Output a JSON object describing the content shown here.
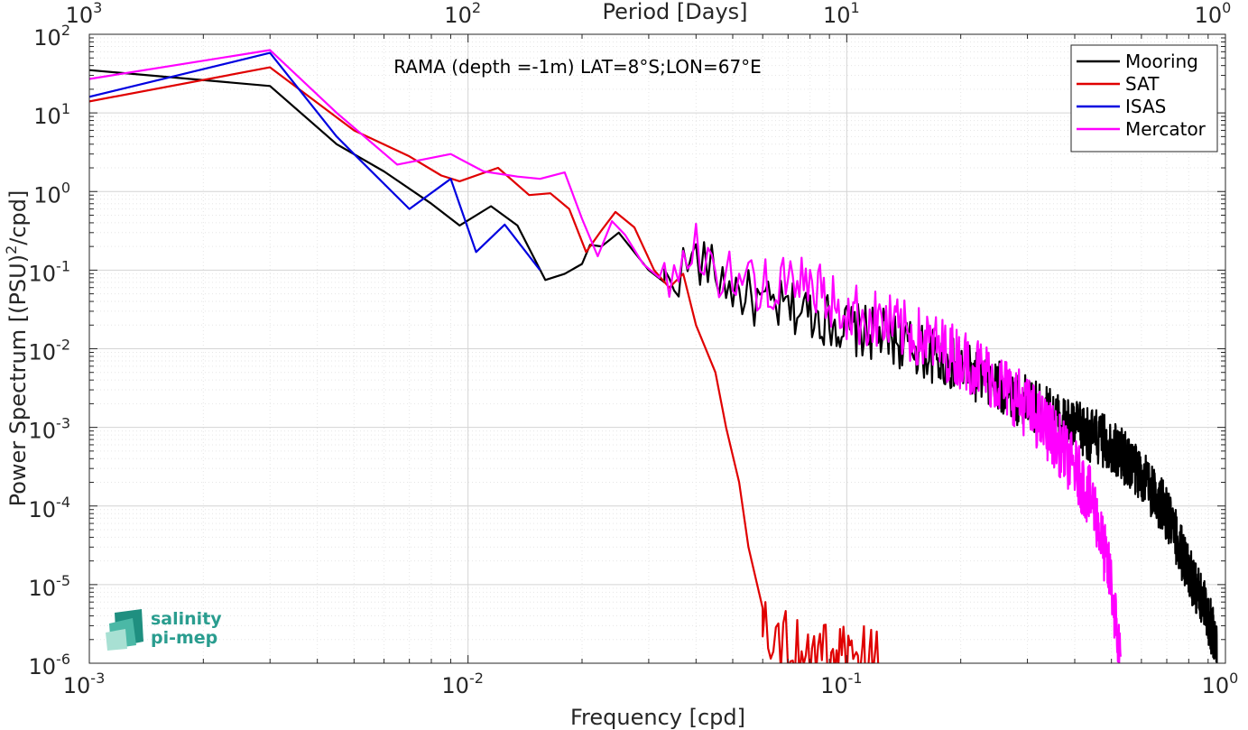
{
  "chart_data": {
    "type": "line",
    "title": "RAMA (depth =-1m) LAT=8°S;LON=67°E",
    "xlabel": "Frequency [cpd]",
    "ylabel_main": "Power Spectrum [(PSU)",
    "ylabel_sup": "2",
    "ylabel_tail": "/cpd]",
    "top_xlabel": "Period [Days]",
    "xscale": "log",
    "yscale": "log",
    "xlim": [
      0.001,
      1
    ],
    "ylim": [
      1e-06,
      100
    ],
    "grid": true,
    "legend_position": "top-right",
    "x_ticks": [
      {
        "base": "10",
        "exp": "-3",
        "value": 0.001
      },
      {
        "base": "10",
        "exp": "-2",
        "value": 0.01
      },
      {
        "base": "10",
        "exp": "-1",
        "value": 0.1
      },
      {
        "base": "10",
        "exp": "0",
        "value": 1
      }
    ],
    "top_ticks": [
      {
        "base": "10",
        "exp": "3",
        "value": 0.001
      },
      {
        "base": "10",
        "exp": "2",
        "value": 0.01
      },
      {
        "base": "10",
        "exp": "1",
        "value": 0.1
      },
      {
        "base": "10",
        "exp": "0",
        "value": 1
      }
    ],
    "y_ticks": [
      {
        "base": "10",
        "exp": "2",
        "value": 100
      },
      {
        "base": "10",
        "exp": "1",
        "value": 10
      },
      {
        "base": "10",
        "exp": "0",
        "value": 1
      },
      {
        "base": "10",
        "exp": "-1",
        "value": 0.1
      },
      {
        "base": "10",
        "exp": "-2",
        "value": 0.01
      },
      {
        "base": "10",
        "exp": "-3",
        "value": 0.001
      },
      {
        "base": "10",
        "exp": "-4",
        "value": 0.0001
      },
      {
        "base": "10",
        "exp": "-5",
        "value": 1e-05
      },
      {
        "base": "10",
        "exp": "-6",
        "value": 1e-06
      }
    ],
    "series": [
      {
        "name": "Mooring",
        "color": "#000000",
        "noisy_from": 0.033,
        "noise_amp": 0.35,
        "points": [
          [
            0.001,
            35
          ],
          [
            0.003,
            22
          ],
          [
            0.0045,
            4
          ],
          [
            0.006,
            1.8
          ],
          [
            0.008,
            0.7
          ],
          [
            0.0095,
            0.37
          ],
          [
            0.0115,
            0.65
          ],
          [
            0.0135,
            0.37
          ],
          [
            0.016,
            0.075
          ],
          [
            0.018,
            0.09
          ],
          [
            0.02,
            0.12
          ],
          [
            0.021,
            0.21
          ],
          [
            0.0225,
            0.2
          ],
          [
            0.025,
            0.3
          ],
          [
            0.03,
            0.1
          ],
          [
            0.033,
            0.07
          ],
          [
            0.04,
            0.14
          ],
          [
            0.05,
            0.06
          ],
          [
            0.06,
            0.035
          ],
          [
            0.08,
            0.03
          ],
          [
            0.1,
            0.018
          ],
          [
            0.13,
            0.014
          ],
          [
            0.18,
            0.007
          ],
          [
            0.22,
            0.0045
          ],
          [
            0.3,
            0.002
          ],
          [
            0.4,
            0.001
          ],
          [
            0.5,
            0.0006
          ],
          [
            0.6,
            0.00025
          ],
          [
            0.7,
            8e-05
          ],
          [
            0.8,
            1.5e-05
          ],
          [
            0.9,
            4e-06
          ],
          [
            0.95,
            1.5e-06
          ]
        ]
      },
      {
        "name": "SAT",
        "color": "#e00000",
        "noisy_from": 0.06,
        "noise_amp": 0.4,
        "points": [
          [
            0.001,
            14
          ],
          [
            0.003,
            38
          ],
          [
            0.005,
            6
          ],
          [
            0.007,
            2.8
          ],
          [
            0.0085,
            1.6
          ],
          [
            0.0095,
            1.35
          ],
          [
            0.012,
            2.0
          ],
          [
            0.0145,
            0.9
          ],
          [
            0.0165,
            0.95
          ],
          [
            0.0185,
            0.6
          ],
          [
            0.0205,
            0.17
          ],
          [
            0.0225,
            0.32
          ],
          [
            0.0245,
            0.55
          ],
          [
            0.0275,
            0.35
          ],
          [
            0.031,
            0.1
          ],
          [
            0.034,
            0.06
          ],
          [
            0.037,
            0.09
          ],
          [
            0.04,
            0.02
          ],
          [
            0.045,
            0.005
          ],
          [
            0.048,
            0.001
          ],
          [
            0.052,
            0.0002
          ],
          [
            0.055,
            3e-05
          ],
          [
            0.06,
            5e-06
          ],
          [
            0.065,
            2e-06
          ],
          [
            0.08,
            1.5e-06
          ],
          [
            0.1,
            1.2e-06
          ],
          [
            0.12,
            1.2e-06
          ],
          [
            0.125,
            1e-06
          ]
        ]
      },
      {
        "name": "ISAS",
        "color": "#0000e0",
        "noisy_from": 10,
        "noise_amp": 0,
        "points": [
          [
            0.001,
            16
          ],
          [
            0.003,
            58
          ],
          [
            0.0045,
            5
          ],
          [
            0.005,
            3
          ],
          [
            0.007,
            0.6
          ],
          [
            0.009,
            1.45
          ],
          [
            0.0105,
            0.17
          ],
          [
            0.0125,
            0.38
          ],
          [
            0.0155,
            0.1
          ]
        ]
      },
      {
        "name": "Mercator",
        "color": "#ff00ff",
        "noisy_from": 0.033,
        "noise_amp": 0.4,
        "points": [
          [
            0.001,
            27
          ],
          [
            0.003,
            63
          ],
          [
            0.0045,
            10
          ],
          [
            0.0065,
            2.2
          ],
          [
            0.009,
            3.0
          ],
          [
            0.011,
            1.8
          ],
          [
            0.0135,
            1.55
          ],
          [
            0.0155,
            1.45
          ],
          [
            0.018,
            1.75
          ],
          [
            0.02,
            0.45
          ],
          [
            0.022,
            0.15
          ],
          [
            0.024,
            0.42
          ],
          [
            0.026,
            0.28
          ],
          [
            0.029,
            0.12
          ],
          [
            0.032,
            0.08
          ],
          [
            0.04,
            0.16
          ],
          [
            0.05,
            0.09
          ],
          [
            0.06,
            0.06
          ],
          [
            0.08,
            0.06
          ],
          [
            0.1,
            0.03
          ],
          [
            0.13,
            0.02
          ],
          [
            0.18,
            0.01
          ],
          [
            0.22,
            0.006
          ],
          [
            0.28,
            0.0025
          ],
          [
            0.35,
            0.0008
          ],
          [
            0.4,
            0.0003
          ],
          [
            0.45,
            0.0001
          ],
          [
            0.5,
            1e-05
          ],
          [
            0.52,
            2e-06
          ],
          [
            0.53,
            1e-06
          ]
        ]
      }
    ]
  },
  "logo": {
    "line1": "salinity",
    "line2": "pi-mep"
  }
}
